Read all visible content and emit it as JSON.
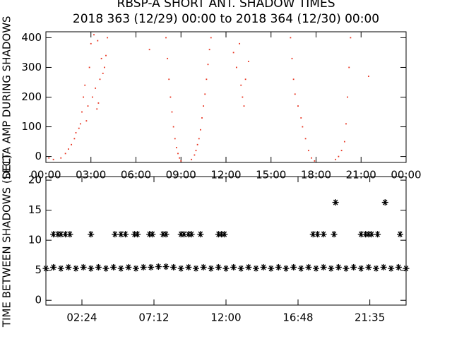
{
  "chart_data": [
    {
      "type": "scatter",
      "title": "RBSP-A SHORT ANT. SHADOW TIMES",
      "subtitle": "2018 363 (12/29) 00:00 to 2018 364 (12/30) 00:00",
      "y_label": "DELTA AMP DURING SHADOWS",
      "marker": "dot",
      "color": "#e8321e",
      "xlim": [
        0,
        24
      ],
      "xticks": [
        {
          "value": 0,
          "label": "00:00"
        },
        {
          "value": 3,
          "label": "03:00"
        },
        {
          "value": 6,
          "label": "06:00"
        },
        {
          "value": 9,
          "label": "09:00"
        },
        {
          "value": 12,
          "label": "12:00"
        },
        {
          "value": 15,
          "label": "15:00"
        },
        {
          "value": 18,
          "label": "18:00"
        },
        {
          "value": 21,
          "label": "21:00"
        },
        {
          "value": 24,
          "label": "00:00"
        }
      ],
      "ylim": [
        -20,
        420
      ],
      "yticks": [
        0,
        100,
        200,
        300,
        400
      ],
      "x": [
        0.2,
        0.5,
        1.0,
        1.3,
        1.5,
        1.7,
        1.9,
        2.0,
        2.2,
        2.3,
        2.4,
        2.5,
        2.6,
        2.7,
        2.8,
        2.9,
        3.0,
        3.1,
        3.3,
        3.4,
        3.5,
        3.6,
        3.7,
        3.8,
        3.9,
        4.0,
        4.1,
        3.2,
        3.45,
        6.9,
        8.0,
        8.1,
        8.2,
        8.3,
        8.4,
        8.5,
        8.6,
        8.7,
        8.8,
        8.9,
        9.0,
        9.7,
        9.9,
        10.0,
        10.1,
        10.2,
        10.3,
        10.4,
        10.5,
        10.6,
        10.7,
        10.8,
        10.9,
        11.0,
        12.5,
        12.7,
        12.9,
        13.0,
        13.1,
        13.3,
        13.5,
        13.2,
        16.3,
        16.4,
        16.5,
        16.6,
        16.8,
        17.0,
        17.1,
        17.3,
        17.5,
        17.7,
        17.9,
        19.3,
        19.5,
        19.7,
        19.9,
        20.0,
        20.1,
        20.2,
        20.3,
        21.5
      ],
      "y": [
        -5,
        -10,
        -5,
        10,
        25,
        40,
        60,
        80,
        95,
        110,
        150,
        200,
        240,
        120,
        170,
        300,
        380,
        200,
        230,
        160,
        180,
        260,
        330,
        280,
        300,
        340,
        400,
        410,
        390,
        360,
        400,
        330,
        260,
        200,
        150,
        100,
        60,
        30,
        10,
        -5,
        -15,
        -10,
        5,
        20,
        40,
        60,
        90,
        130,
        170,
        210,
        260,
        310,
        360,
        400,
        350,
        300,
        380,
        240,
        200,
        260,
        320,
        170,
        400,
        330,
        260,
        210,
        170,
        130,
        100,
        60,
        20,
        -5,
        -15,
        -10,
        0,
        20,
        50,
        110,
        200,
        300,
        400,
        270
      ]
    },
    {
      "type": "scatter",
      "y_label": "TIME BETWEEN SHADOWS (SEC)",
      "marker": "asterisk",
      "color": "#000000",
      "xlim": [
        0,
        24
      ],
      "xticks": [
        {
          "value": 2.4,
          "label": "02:24"
        },
        {
          "value": 7.2,
          "label": "07:12"
        },
        {
          "value": 12,
          "label": "12:00"
        },
        {
          "value": 16.8,
          "label": "16:48"
        },
        {
          "value": 21.583,
          "label": "21:35"
        }
      ],
      "ylim": [
        -0.8,
        20.6
      ],
      "yticks": [
        0,
        5,
        10,
        15,
        20
      ],
      "x": [
        0,
        0.5,
        1,
        1.5,
        2,
        2.5,
        3,
        3.5,
        4,
        4.5,
        5,
        5.5,
        6,
        6.5,
        7,
        7.5,
        8,
        8.5,
        9,
        9.5,
        10,
        10.5,
        11,
        11.5,
        12,
        12.5,
        13,
        13.5,
        14,
        14.5,
        15,
        15.5,
        16,
        16.5,
        17,
        17.5,
        18,
        18.5,
        19,
        19.5,
        20,
        20.5,
        21,
        21.5,
        22,
        22.5,
        23,
        23.5,
        24,
        0.5,
        0.8,
        1.0,
        1.3,
        1.6,
        3.0,
        4.6,
        5.0,
        5.3,
        5.9,
        6.1,
        6.9,
        7.1,
        7.8,
        8.0,
        9.0,
        9.2,
        9.5,
        9.7,
        10.3,
        11.5,
        11.7,
        11.9,
        17.8,
        18.1,
        18.5,
        19.2,
        21.0,
        21.3,
        21.5,
        21.7,
        22.1,
        23.6,
        19.3,
        22.6
      ],
      "y": [
        5.3,
        5.5,
        5.3,
        5.5,
        5.3,
        5.5,
        5.3,
        5.5,
        5.3,
        5.5,
        5.3,
        5.5,
        5.3,
        5.5,
        5.5,
        5.6,
        5.6,
        5.5,
        5.3,
        5.5,
        5.3,
        5.5,
        5.3,
        5.5,
        5.3,
        5.5,
        5.3,
        5.5,
        5.3,
        5.5,
        5.3,
        5.5,
        5.3,
        5.5,
        5.3,
        5.5,
        5.3,
        5.5,
        5.3,
        5.5,
        5.3,
        5.5,
        5.3,
        5.5,
        5.3,
        5.5,
        5.3,
        5.5,
        5.3,
        11,
        11,
        11,
        11,
        11,
        11,
        11,
        11,
        11,
        11,
        11,
        11,
        11,
        11,
        11,
        11,
        11,
        11,
        11,
        11,
        11,
        11,
        11,
        11,
        11,
        11,
        11,
        11,
        11,
        11,
        11,
        11,
        11,
        16.3,
        16.3
      ]
    }
  ]
}
